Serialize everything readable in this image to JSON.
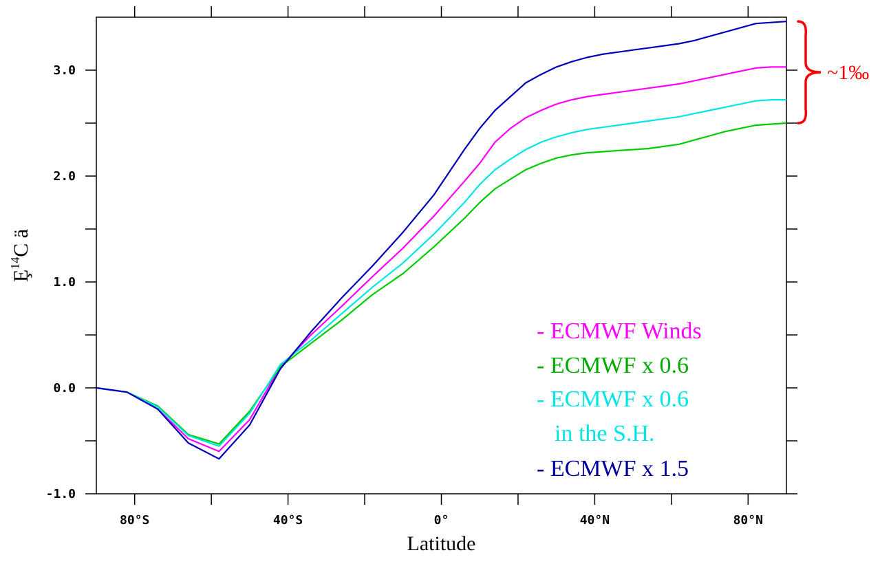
{
  "chart_data": {
    "type": "line",
    "xlabel": "Latitude",
    "ylabel": "Ȩ",
    "ylabel_sup": "14",
    "ylabel_tail": "C ä",
    "xlim": [
      -90,
      90
    ],
    "ylim": [
      -1.0,
      3.5
    ],
    "x_ticks": [
      {
        "value": -80,
        "label": "80°S"
      },
      {
        "value": -40,
        "label": "40°S"
      },
      {
        "value": 0,
        "label": "0°"
      },
      {
        "value": 40,
        "label": "40°N"
      },
      {
        "value": 80,
        "label": "80°N"
      }
    ],
    "x_minor_ticks": [
      -60,
      -20,
      20,
      60
    ],
    "y_ticks": [
      {
        "value": -1.0,
        "label": "-1.0"
      },
      {
        "value": 0.0,
        "label": "0.0"
      },
      {
        "value": 1.0,
        "label": "1.0"
      },
      {
        "value": 2.0,
        "label": "2.0"
      },
      {
        "value": 3.0,
        "label": "3.0"
      }
    ],
    "y_minor_ticks": [
      -0.5,
      0.5,
      1.5,
      2.5
    ],
    "x": [
      -90,
      -82,
      -74,
      -66,
      -58,
      -50,
      -42,
      -34,
      -26,
      -18,
      -10,
      -2,
      6,
      10,
      14,
      18,
      22,
      26,
      30,
      34,
      38,
      42,
      46,
      50,
      54,
      58,
      62,
      66,
      70,
      74,
      78,
      82,
      86,
      90
    ],
    "series": [
      {
        "color": "#ff00ff",
        "values": [
          0.0,
          -0.04,
          -0.2,
          -0.48,
          -0.6,
          -0.3,
          0.2,
          0.5,
          0.77,
          1.05,
          1.32,
          1.62,
          1.95,
          2.12,
          2.32,
          2.45,
          2.55,
          2.62,
          2.68,
          2.72,
          2.75,
          2.77,
          2.79,
          2.81,
          2.83,
          2.85,
          2.87,
          2.9,
          2.93,
          2.96,
          2.99,
          3.02,
          3.03,
          3.03
        ]
      },
      {
        "color": "#00cc00",
        "values": [
          0.0,
          -0.04,
          -0.17,
          -0.44,
          -0.53,
          -0.22,
          0.2,
          0.42,
          0.64,
          0.88,
          1.08,
          1.33,
          1.6,
          1.75,
          1.88,
          1.97,
          2.06,
          2.12,
          2.17,
          2.2,
          2.22,
          2.23,
          2.24,
          2.25,
          2.26,
          2.28,
          2.3,
          2.34,
          2.38,
          2.42,
          2.45,
          2.48,
          2.49,
          2.5
        ]
      },
      {
        "color": "#00e5e5",
        "values": [
          0.0,
          -0.04,
          -0.18,
          -0.45,
          -0.55,
          -0.24,
          0.22,
          0.45,
          0.7,
          0.95,
          1.18,
          1.45,
          1.75,
          1.92,
          2.06,
          2.16,
          2.25,
          2.32,
          2.37,
          2.41,
          2.44,
          2.46,
          2.48,
          2.5,
          2.52,
          2.54,
          2.56,
          2.59,
          2.62,
          2.65,
          2.68,
          2.71,
          2.72,
          2.72
        ]
      },
      {
        "color": "#0000bb",
        "values": [
          0.0,
          -0.04,
          -0.2,
          -0.52,
          -0.67,
          -0.35,
          0.18,
          0.53,
          0.85,
          1.15,
          1.47,
          1.82,
          2.25,
          2.45,
          2.62,
          2.75,
          2.88,
          2.96,
          3.03,
          3.08,
          3.12,
          3.15,
          3.17,
          3.19,
          3.21,
          3.23,
          3.25,
          3.28,
          3.32,
          3.36,
          3.4,
          3.44,
          3.45,
          3.46
        ]
      }
    ],
    "legend": [
      {
        "text": "- ECMWF Winds",
        "color": "#ff00ff"
      },
      {
        "text": "- ECMWF x 0.6",
        "color": "#00aa00"
      },
      {
        "text": "- ECMWF x 0.6",
        "color": "#00e5e5"
      },
      {
        "text": "in the S.H.",
        "color": "#00e5e5"
      },
      {
        "text": "-  ECMWF x 1.5",
        "color": "#000099"
      }
    ],
    "annotation": {
      "text": "~1‰",
      "color": "#ff0000",
      "range": [
        2.5,
        3.46
      ]
    },
    "legend_position": "lower-right",
    "grid": false
  }
}
